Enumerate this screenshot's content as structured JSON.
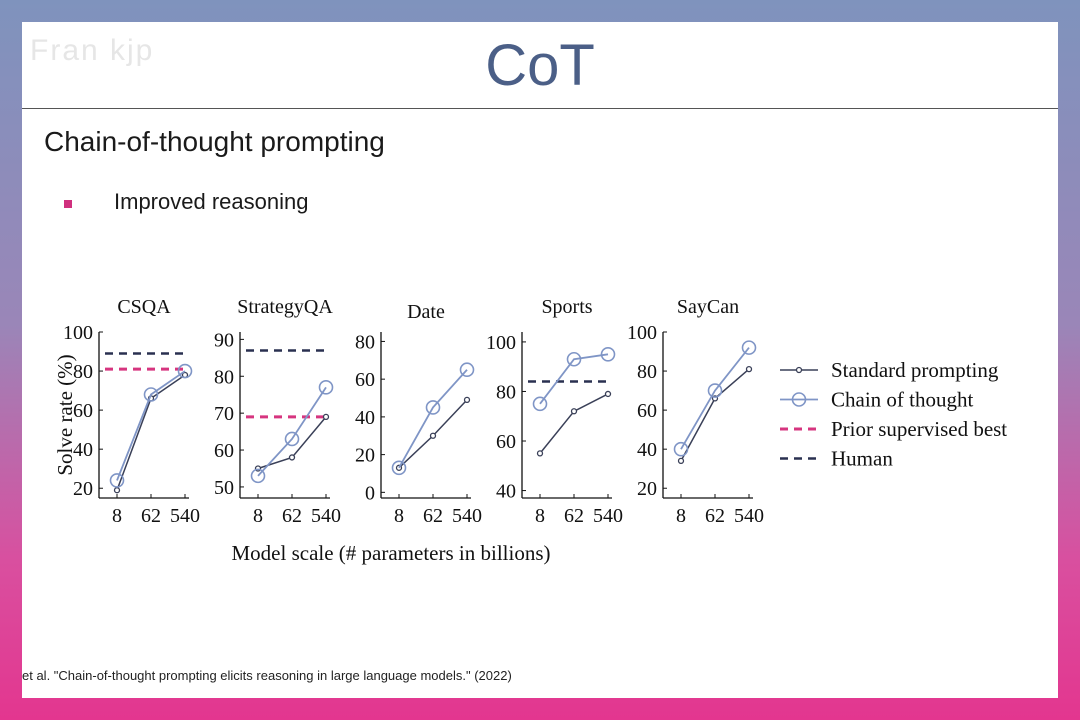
{
  "slide": {
    "logo_text": "Fran kjp",
    "title": "CoT",
    "subtitle": "Chain-of-thought prompting",
    "bullet": "Improved reasoning",
    "citation": "et al. \"Chain-of-thought prompting elicits reasoning in large language models.\" (2022)"
  },
  "colors": {
    "standard": "#3a4058",
    "cot": "#7f95c6",
    "prior": "#d6357f",
    "human": "#2a3050",
    "accent": "#4b5f87"
  },
  "chart_data": {
    "type": "line",
    "x": [
      "8",
      "62",
      "540"
    ],
    "xlabel": "Model scale (# parameters in billions)",
    "ylabel": "Solve rate (%)",
    "legend": [
      "Standard prompting",
      "Chain of thought",
      "Prior supervised best",
      "Human"
    ],
    "legend_placement": "right",
    "grid": false,
    "panels": [
      {
        "title": "CSQA",
        "ylim": [
          15,
          100
        ],
        "yticks": [
          20,
          40,
          60,
          80,
          100
        ],
        "standard": [
          19,
          66,
          78
        ],
        "cot": [
          24,
          68,
          80
        ],
        "prior": 81,
        "human": 89
      },
      {
        "title": "StrategyQA",
        "ylim": [
          47,
          92
        ],
        "yticks": [
          50,
          60,
          70,
          80,
          90
        ],
        "standard": [
          55,
          58,
          69
        ],
        "cot": [
          53,
          63,
          77
        ],
        "prior": 69,
        "human": 87
      },
      {
        "title": "Date",
        "ylim": [
          -3,
          85
        ],
        "yticks": [
          0,
          20,
          40,
          60,
          80
        ],
        "standard": [
          13,
          30,
          49
        ],
        "cot": [
          13,
          45,
          65
        ],
        "prior": null,
        "human": null
      },
      {
        "title": "Sports",
        "ylim": [
          37,
          104
        ],
        "yticks": [
          40,
          60,
          80,
          100
        ],
        "standard": [
          55,
          72,
          79
        ],
        "cot": [
          75,
          93,
          95
        ],
        "prior": null,
        "human": 84
      },
      {
        "title": "SayCan",
        "ylim": [
          15,
          100
        ],
        "yticks": [
          20,
          40,
          60,
          80,
          100
        ],
        "standard": [
          34,
          66,
          81
        ],
        "cot": [
          40,
          70,
          92
        ],
        "prior": null,
        "human": null
      }
    ]
  }
}
